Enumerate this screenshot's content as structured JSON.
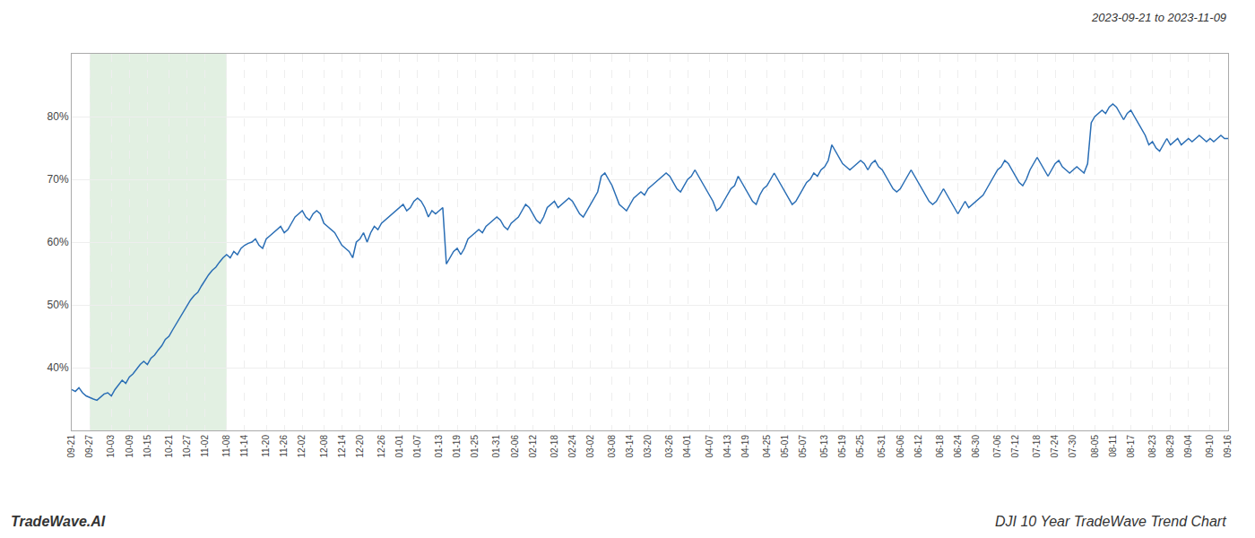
{
  "chart_data": {
    "type": "line",
    "title": "DJI 10 Year TradeWave Trend Chart",
    "subtitle": "2023-09-21 to 2023-11-09",
    "annotations": [
      "TradeWave.AI"
    ],
    "color": "#2a6eb5",
    "grid": true,
    "ylim": [
      30,
      90
    ],
    "yticks": [
      {
        "value": 40,
        "label": "40%"
      },
      {
        "value": 50,
        "label": "50%"
      },
      {
        "value": 60,
        "label": "60%"
      },
      {
        "value": 70,
        "label": "70%"
      },
      {
        "value": 80,
        "label": "80%"
      }
    ],
    "shade": {
      "from": "09-27",
      "to": "11-08",
      "color": "#d6ead6"
    },
    "categories": [
      "09-21",
      null,
      null,
      null,
      null,
      "09-27",
      null,
      null,
      null,
      null,
      null,
      "10-03",
      null,
      null,
      null,
      null,
      "10-09",
      null,
      null,
      null,
      null,
      "10-15",
      null,
      null,
      null,
      null,
      null,
      "10-21",
      null,
      null,
      null,
      null,
      "10-27",
      null,
      null,
      null,
      null,
      "11-02",
      null,
      null,
      null,
      null,
      null,
      "11-08",
      null,
      null,
      null,
      null,
      "11-14",
      null,
      null,
      null,
      null,
      null,
      "11-20",
      null,
      null,
      null,
      null,
      "11-26",
      null,
      null,
      null,
      null,
      "12-02",
      null,
      null,
      null,
      null,
      null,
      "12-08",
      null,
      null,
      null,
      null,
      "12-14",
      null,
      null,
      null,
      null,
      "12-20",
      null,
      null,
      null,
      null,
      null,
      "12-26",
      null,
      null,
      null,
      null,
      "01-01",
      null,
      null,
      null,
      null,
      "01-07",
      null,
      null,
      null,
      null,
      null,
      "01-13",
      null,
      null,
      null,
      null,
      "01-19",
      null,
      null,
      null,
      null,
      "01-25",
      null,
      null,
      null,
      null,
      null,
      "01-31",
      null,
      null,
      null,
      null,
      "02-06",
      null,
      null,
      null,
      null,
      "02-12",
      null,
      null,
      null,
      null,
      null,
      "02-18",
      null,
      null,
      null,
      null,
      "02-24",
      null,
      null,
      null,
      null,
      "03-02",
      null,
      null,
      null,
      null,
      null,
      "03-08",
      null,
      null,
      null,
      null,
      "03-14",
      null,
      null,
      null,
      null,
      "03-20",
      null,
      null,
      null,
      null,
      null,
      "03-26",
      null,
      null,
      null,
      null,
      "04-01",
      null,
      null,
      null,
      null,
      null,
      "04-07",
      null,
      null,
      null,
      null,
      "04-13",
      null,
      null,
      null,
      null,
      "04-19",
      null,
      null,
      null,
      null,
      null,
      "04-25",
      null,
      null,
      null,
      null,
      "05-01",
      null,
      null,
      null,
      null,
      "05-07",
      null,
      null,
      null,
      null,
      null,
      "05-13",
      null,
      null,
      null,
      null,
      "05-19",
      null,
      null,
      null,
      null,
      "05-25",
      null,
      null,
      null,
      null,
      null,
      "05-31",
      null,
      null,
      null,
      null,
      "06-06",
      null,
      null,
      null,
      null,
      "06-12",
      null,
      null,
      null,
      null,
      null,
      "06-18",
      null,
      null,
      null,
      null,
      "06-24",
      null,
      null,
      null,
      null,
      "06-30",
      null,
      null,
      null,
      null,
      null,
      "07-06",
      null,
      null,
      null,
      null,
      "07-12",
      null,
      null,
      null,
      null,
      null,
      "07-18",
      null,
      null,
      null,
      null,
      "07-24",
      null,
      null,
      null,
      null,
      "07-30",
      null,
      null,
      null,
      null,
      null,
      "08-05",
      null,
      null,
      null,
      null,
      "08-11",
      null,
      null,
      null,
      null,
      "08-17",
      null,
      null,
      null,
      null,
      null,
      "08-23",
      null,
      null,
      null,
      null,
      "08-29",
      null,
      null,
      null,
      null,
      "09-04",
      null,
      null,
      null,
      null,
      null,
      "09-10",
      null,
      null,
      null,
      null,
      "09-16"
    ],
    "values": [
      36.5,
      36.2,
      36.8,
      36.0,
      35.5,
      35.2,
      35.0,
      34.8,
      35.3,
      35.8,
      36.0,
      35.5,
      36.5,
      37.2,
      38.0,
      37.5,
      38.5,
      39.0,
      39.8,
      40.5,
      41.0,
      40.5,
      41.5,
      42.0,
      42.8,
      43.5,
      44.5,
      45.0,
      46.0,
      47.0,
      48.0,
      49.0,
      50.0,
      50.8,
      51.5,
      52.0,
      53.0,
      54.0,
      54.8,
      55.5,
      56.0,
      56.8,
      57.5,
      58.0,
      57.5,
      58.5,
      58.0,
      59.0,
      59.5,
      59.8,
      60.0,
      60.5,
      59.5,
      59.0,
      60.5,
      61.0,
      61.5,
      62.0,
      62.5,
      61.5,
      62.0,
      63.0,
      64.0,
      64.5,
      65.0,
      64.0,
      63.5,
      64.5,
      65.0,
      64.5,
      63.0,
      62.5,
      62.0,
      61.5,
      60.5,
      59.5,
      59.0,
      58.5,
      57.5,
      60.0,
      60.5,
      61.5,
      60.0,
      61.5,
      62.5,
      62.0,
      63.0,
      63.5,
      64.0,
      64.5,
      65.0,
      65.5,
      66.0,
      65.0,
      65.5,
      66.5,
      67.0,
      66.5,
      65.5,
      64.0,
      65.0,
      64.5,
      65.0,
      65.5,
      56.5,
      57.5,
      58.5,
      59.0,
      58.0,
      59.0,
      60.5,
      61.0,
      61.5,
      62.0,
      61.5,
      62.5,
      63.0,
      63.5,
      64.0,
      63.5,
      62.5,
      62.0,
      63.0,
      63.5,
      64.0,
      65.0,
      66.0,
      65.5,
      64.5,
      63.5,
      63.0,
      64.0,
      65.5,
      66.0,
      66.5,
      65.5,
      66.0,
      66.5,
      67.0,
      66.5,
      65.5,
      64.5,
      64.0,
      65.0,
      66.0,
      67.0,
      68.0,
      70.5,
      71.0,
      70.0,
      69.0,
      67.5,
      66.0,
      65.5,
      65.0,
      66.0,
      67.0,
      67.5,
      68.0,
      67.5,
      68.5,
      69.0,
      69.5,
      70.0,
      70.5,
      71.0,
      70.5,
      69.5,
      68.5,
      68.0,
      69.0,
      70.0,
      70.5,
      71.5,
      70.5,
      69.5,
      68.5,
      67.5,
      66.5,
      65.0,
      65.5,
      66.5,
      67.5,
      68.5,
      69.0,
      70.5,
      69.5,
      68.5,
      67.5,
      66.5,
      66.0,
      67.5,
      68.5,
      69.0,
      70.0,
      71.0,
      70.0,
      69.0,
      68.0,
      67.0,
      66.0,
      66.5,
      67.5,
      68.5,
      69.5,
      70.0,
      71.0,
      70.5,
      71.5,
      72.0,
      73.0,
      75.5,
      74.5,
      73.5,
      72.5,
      72.0,
      71.5,
      72.0,
      72.5,
      73.0,
      72.5,
      71.5,
      72.5,
      73.0,
      72.0,
      71.5,
      70.5,
      69.5,
      68.5,
      68.0,
      68.5,
      69.5,
      70.5,
      71.5,
      70.5,
      69.5,
      68.5,
      67.5,
      66.5,
      66.0,
      66.5,
      67.5,
      68.5,
      67.5,
      66.5,
      65.5,
      64.5,
      65.5,
      66.5,
      65.5,
      66.0,
      66.5,
      67.0,
      67.5,
      68.5,
      69.5,
      70.5,
      71.5,
      72.0,
      73.0,
      72.5,
      71.5,
      70.5,
      69.5,
      69.0,
      70.0,
      71.5,
      72.5,
      73.5,
      72.5,
      71.5,
      70.5,
      71.5,
      72.5,
      73.0,
      72.0,
      71.5,
      71.0,
      71.5,
      72.0,
      71.5,
      71.0,
      72.5,
      79.0,
      80.0,
      80.5,
      81.0,
      80.5,
      81.5,
      82.0,
      81.5,
      80.5,
      79.5,
      80.5,
      81.0,
      80.0,
      79.0,
      78.0,
      77.0,
      75.5,
      76.0,
      75.0,
      74.5,
      75.5,
      76.5,
      75.5,
      76.0,
      76.5,
      75.5,
      76.0,
      76.5,
      76.0,
      76.5,
      77.0,
      76.5,
      76.0,
      76.5,
      76.0,
      76.5,
      77.0,
      76.5,
      76.5
    ]
  }
}
